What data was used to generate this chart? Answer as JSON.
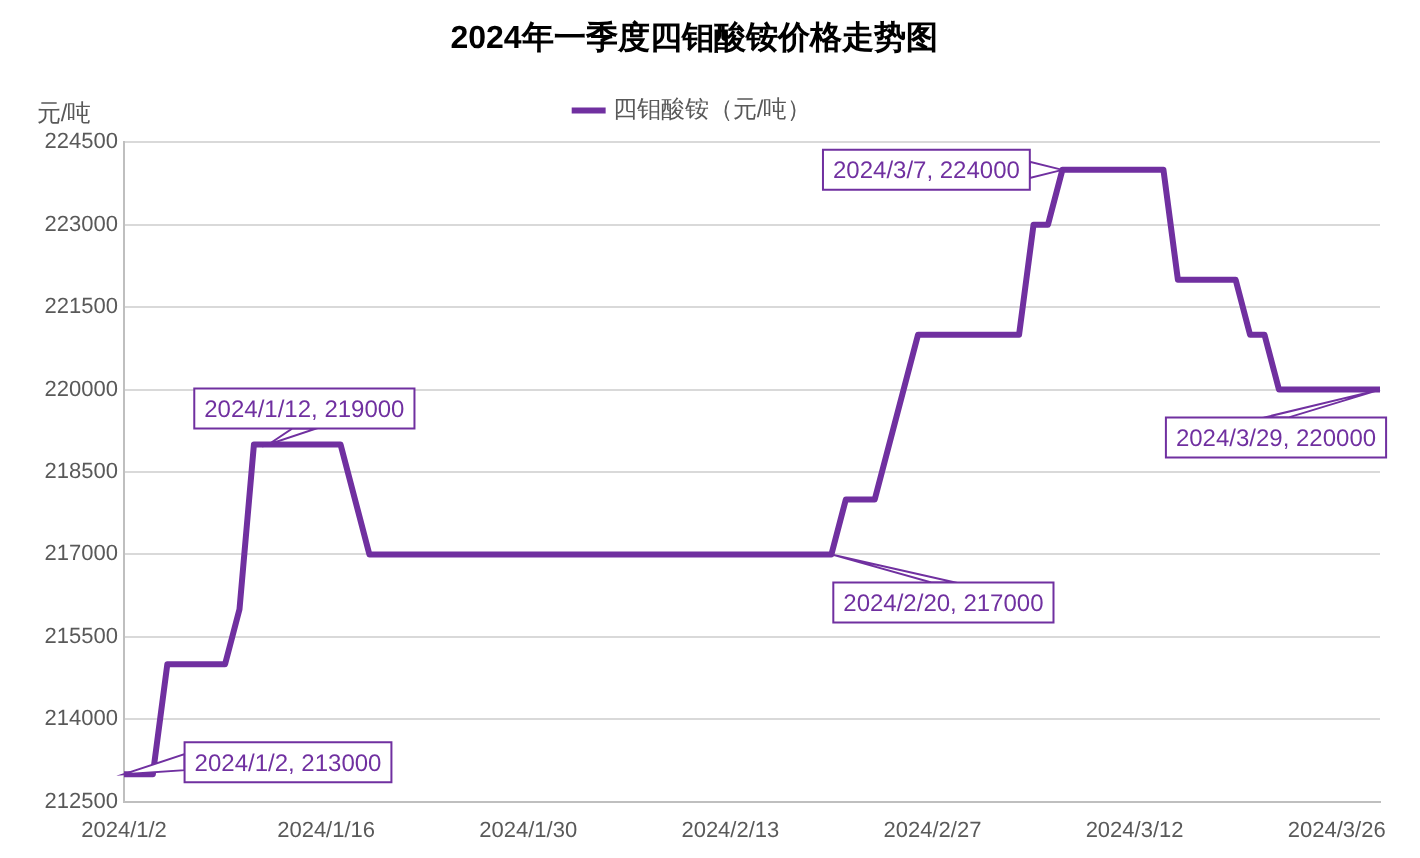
{
  "chart_data": {
    "type": "line",
    "title": "2024年一季度四钼酸铵价格走势图",
    "ylabel": "元/吨",
    "x": [
      "2024-01-02",
      "2024-01-04",
      "2024-01-05",
      "2024-01-09",
      "2024-01-10",
      "2024-01-11",
      "2024-01-12",
      "2024-01-17",
      "2024-01-19",
      "2024-02-20",
      "2024-02-21",
      "2024-02-23",
      "2024-02-26",
      "2024-03-04",
      "2024-03-05",
      "2024-03-06",
      "2024-03-07",
      "2024-03-14",
      "2024-03-15",
      "2024-03-19",
      "2024-03-20",
      "2024-03-21",
      "2024-03-22",
      "2024-03-29"
    ],
    "series": [
      {
        "name": "四钼酸铵（元/吨）",
        "color": "#7030a0",
        "values": [
          213000,
          213000,
          215000,
          215000,
          216000,
          219000,
          219000,
          219000,
          217000,
          217000,
          218000,
          218000,
          221000,
          221000,
          223000,
          223000,
          224000,
          224000,
          222000,
          222000,
          221000,
          221000,
          220000,
          220000
        ]
      }
    ],
    "xlim": [
      "2024-01-02",
      "2024-03-29"
    ],
    "xticks": [
      {
        "value": "2024-01-02",
        "label": "2024/1/2"
      },
      {
        "value": "2024-01-16",
        "label": "2024/1/16"
      },
      {
        "value": "2024-01-30",
        "label": "2024/1/30"
      },
      {
        "value": "2024-02-13",
        "label": "2024/2/13"
      },
      {
        "value": "2024-02-27",
        "label": "2024/2/27"
      },
      {
        "value": "2024-03-12",
        "label": "2024/3/12"
      },
      {
        "value": "2024-03-26",
        "label": "2024/3/26"
      }
    ],
    "ylim": [
      212500,
      224500
    ],
    "yticks": [
      212500,
      214000,
      215500,
      217000,
      218500,
      220000,
      221500,
      223000,
      224500
    ],
    "grid": "y",
    "legend": "top",
    "marker": "none",
    "line_style": "solid",
    "annotations": [
      {
        "text": "2024/1/2, 213000",
        "x": "2024-01-02",
        "y": 213000
      },
      {
        "text": "2024/1/12, 219000",
        "x": "2024-01-12",
        "y": 219000
      },
      {
        "text": "2024/2/20, 217000",
        "x": "2024-02-20",
        "y": 217000
      },
      {
        "text": "2024/3/7, 224000",
        "x": "2024-03-07",
        "y": 224000
      },
      {
        "text": "2024/3/29, 220000",
        "x": "2024-03-29",
        "y": 220000
      }
    ]
  }
}
